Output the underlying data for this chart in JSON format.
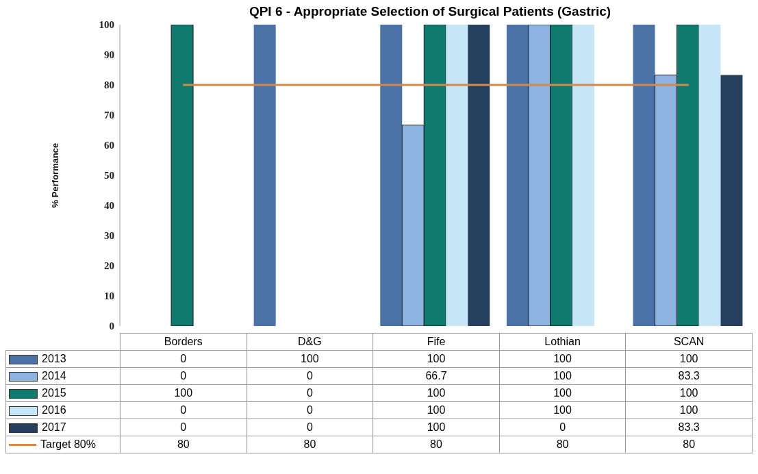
{
  "chart_data": {
    "type": "bar",
    "title": "QPI 6 - Appropriate Selection of Surgical Patients (Gastric)",
    "ylabel": "% Performance",
    "categories": [
      "Borders",
      "D&G",
      "Fife",
      "Lothian",
      "SCAN"
    ],
    "series": [
      {
        "name": "2013",
        "color": "#4a72a6",
        "values": [
          0,
          100,
          100,
          100,
          100
        ]
      },
      {
        "name": "2014",
        "color": "#8db3e2",
        "values": [
          0,
          0,
          66.7,
          100,
          83.3
        ]
      },
      {
        "name": "2015",
        "color": "#0f7a6e",
        "values": [
          100,
          0,
          100,
          100,
          100
        ]
      },
      {
        "name": "2016",
        "color": "#c6e6f8",
        "values": [
          0,
          0,
          100,
          100,
          100
        ]
      },
      {
        "name": "2017",
        "color": "#253f5f",
        "values": [
          0,
          0,
          100,
          0,
          83.3
        ]
      },
      {
        "name": "Target 80%",
        "type": "line",
        "color": "#d4894a",
        "values": [
          80,
          80,
          80,
          80,
          80
        ]
      }
    ],
    "ylim": [
      0,
      100
    ],
    "yticks": [
      0,
      10,
      20,
      30,
      40,
      50,
      60,
      70,
      80,
      90,
      100
    ],
    "grid": false,
    "legend": "bottom",
    "data_labels": true
  }
}
